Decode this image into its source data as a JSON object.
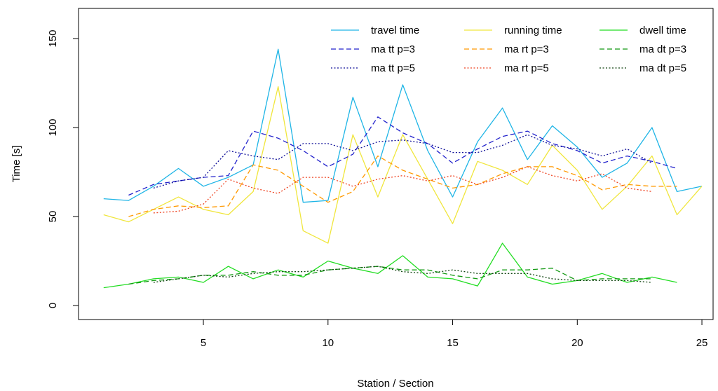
{
  "chart_data": {
    "type": "line",
    "title": "",
    "xlabel": "Station / Section",
    "ylabel": "Time [s]",
    "xlim": [
      0,
      26
    ],
    "ylim": [
      -5,
      165
    ],
    "xticks": [
      5,
      10,
      15,
      20,
      25
    ],
    "yticks": [
      0,
      50,
      100,
      150
    ],
    "grid": false,
    "legend_position": "top-right",
    "legend_columns": 3,
    "series": [
      {
        "name": "travel time",
        "color": "#1fb5e6",
        "style": "solid",
        "x_start": 1,
        "values": [
          60,
          59,
          67,
          77,
          67,
          72,
          79,
          144,
          58,
          59,
          117,
          78,
          124,
          87,
          61,
          92,
          111,
          82,
          101,
          89,
          72,
          80,
          100,
          64,
          67
        ]
      },
      {
        "name": "running time",
        "color": "#f0e63c",
        "style": "solid",
        "x_start": 1,
        "values": [
          51,
          47,
          54,
          61,
          54,
          51,
          64,
          123,
          42,
          35,
          96,
          61,
          96,
          71,
          46,
          81,
          76,
          68,
          90,
          76,
          54,
          67,
          84,
          51,
          67
        ]
      },
      {
        "name": "dwell time",
        "color": "#22dd22",
        "style": "solid",
        "x_start": 1,
        "values": [
          10,
          12,
          15,
          16,
          13,
          22,
          15,
          20,
          16,
          25,
          21,
          18,
          28,
          16,
          15,
          11,
          35,
          16,
          12,
          14,
          18,
          13,
          16,
          13
        ]
      },
      {
        "name": "ma tt p=3",
        "color": "#2222cc",
        "style": "dashed",
        "x_start": 2,
        "values": [
          62,
          68,
          70,
          72,
          73,
          98,
          94,
          87,
          78,
          85,
          106,
          97,
          91,
          80,
          88,
          95,
          98,
          91,
          87,
          80,
          84,
          81,
          77
        ]
      },
      {
        "name": "ma rt p=3",
        "color": "#ff9900",
        "style": "dashed",
        "x_start": 2,
        "values": [
          50,
          54,
          56,
          55,
          56,
          79,
          76,
          67,
          58,
          64,
          84,
          76,
          71,
          66,
          68,
          74,
          78,
          78,
          73,
          65,
          68,
          67,
          67
        ]
      },
      {
        "name": "ma dt p=3",
        "color": "#119911",
        "style": "dashed",
        "x_start": 2,
        "values": [
          12,
          14,
          15,
          17,
          17,
          19,
          17,
          17,
          20,
          21,
          22,
          20,
          20,
          17,
          15,
          20,
          20,
          21,
          14,
          15,
          15,
          15
        ]
      },
      {
        "name": "ma tt p=5",
        "color": "#111199",
        "style": "dotted",
        "x_start": 3,
        "values": [
          66,
          70,
          72,
          87,
          84,
          82,
          91,
          91,
          87,
          92,
          93,
          91,
          86,
          86,
          90,
          96,
          90,
          88,
          84,
          88,
          80
        ]
      },
      {
        "name": "ma rt p=5",
        "color": "#ee4422",
        "style": "dotted",
        "x_start": 3,
        "values": [
          52,
          53,
          57,
          71,
          66,
          63,
          72,
          72,
          67,
          71,
          73,
          70,
          73,
          68,
          72,
          78,
          73,
          70,
          74,
          66,
          64
        ]
      },
      {
        "name": "ma dt p=5",
        "color": "#114411",
        "style": "dotted",
        "x_start": 3,
        "values": [
          13,
          15,
          17,
          16,
          18,
          19,
          19,
          20,
          21,
          22,
          19,
          18,
          20,
          18,
          18,
          18,
          15,
          14,
          14,
          14,
          13
        ]
      }
    ]
  }
}
